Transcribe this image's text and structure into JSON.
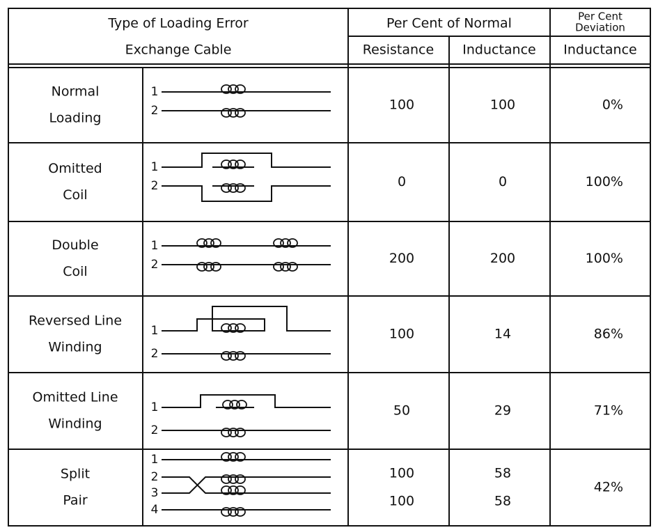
{
  "header": {
    "type_lines": [
      "Type of Loading Error",
      "Exchange Cable"
    ],
    "normal": "Per Cent of Normal",
    "deviation_lines": [
      "Per Cent",
      "Deviation"
    ],
    "sub": [
      "Resistance",
      "Inductance",
      "Inductance"
    ]
  },
  "rows": [
    {
      "name": [
        "Normal",
        "Loading"
      ],
      "wires": [
        "1",
        "2"
      ],
      "resistance": [
        "100"
      ],
      "inductance": [
        "100"
      ],
      "deviation": "0%"
    },
    {
      "name": [
        "Omitted",
        "Coil"
      ],
      "wires": [
        "1",
        "2"
      ],
      "resistance": [
        "0"
      ],
      "inductance": [
        "0"
      ],
      "deviation": "100%"
    },
    {
      "name": [
        "Double",
        "Coil"
      ],
      "wires": [
        "1",
        "2"
      ],
      "resistance": [
        "200"
      ],
      "inductance": [
        "200"
      ],
      "deviation": "100%"
    },
    {
      "name": [
        "Reversed Line",
        "Winding"
      ],
      "wires": [
        "1",
        "2"
      ],
      "resistance": [
        "100"
      ],
      "inductance": [
        "14"
      ],
      "deviation": "86%"
    },
    {
      "name": [
        "Omitted Line",
        "Winding"
      ],
      "wires": [
        "1",
        "2"
      ],
      "resistance": [
        "50"
      ],
      "inductance": [
        "29"
      ],
      "deviation": "71%"
    },
    {
      "name": [
        "Split",
        "Pair"
      ],
      "wires": [
        "1",
        "2",
        "3",
        "4"
      ],
      "resistance": [
        "100",
        "100"
      ],
      "inductance": [
        "58",
        "58"
      ],
      "deviation": "42%"
    }
  ]
}
